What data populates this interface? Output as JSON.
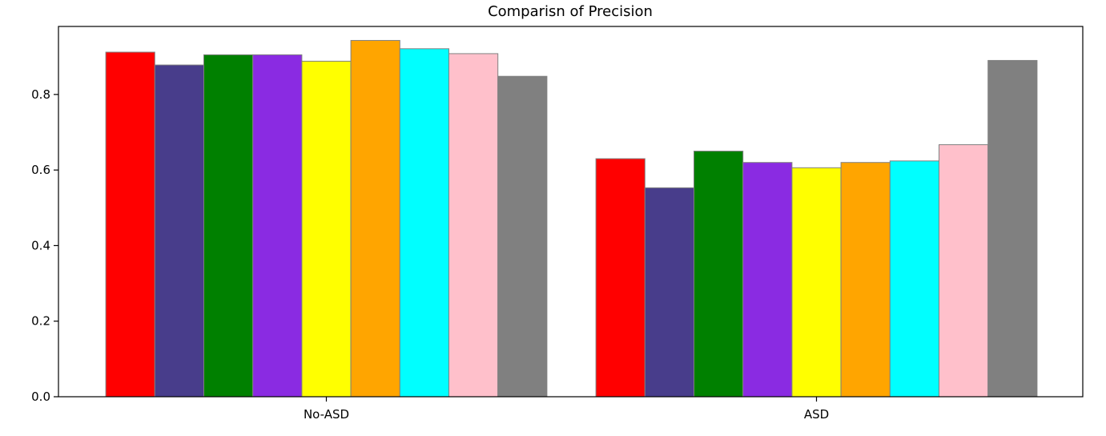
{
  "chart_data": {
    "type": "bar",
    "title": "Comparisn of Precision",
    "xlabel": "",
    "ylabel": "",
    "categories": [
      "No-ASD",
      "ASD"
    ],
    "ylim": [
      0,
      0.98
    ],
    "yticks": [
      "0.0",
      "0.2",
      "0.4",
      "0.6",
      "0.8"
    ],
    "ytick_values": [
      0.0,
      0.2,
      0.4,
      0.6,
      0.8
    ],
    "grid": false,
    "legend": "none",
    "bar_edge_color": "#808080",
    "series": [
      {
        "color": "#ff0000",
        "values": [
          0.912,
          0.63
        ]
      },
      {
        "color": "#483d8b",
        "values": [
          0.878,
          0.553
        ]
      },
      {
        "color": "#008000",
        "values": [
          0.905,
          0.65
        ]
      },
      {
        "color": "#8a2be2",
        "values": [
          0.905,
          0.62
        ]
      },
      {
        "color": "#ffff00",
        "values": [
          0.888,
          0.606
        ]
      },
      {
        "color": "#ffa500",
        "values": [
          0.943,
          0.62
        ]
      },
      {
        "color": "#00ffff",
        "values": [
          0.921,
          0.624
        ]
      },
      {
        "color": "#ffc0cb",
        "values": [
          0.908,
          0.667
        ]
      },
      {
        "color": "#808080",
        "values": [
          0.848,
          0.89
        ]
      }
    ]
  }
}
